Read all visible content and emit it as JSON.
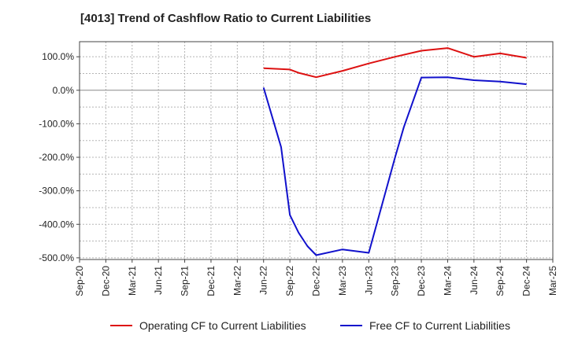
{
  "chart_data": {
    "type": "line",
    "title": "[4013]  Trend of Cashflow Ratio to Current Liabilities",
    "xlabel": "",
    "ylabel": "",
    "x_ticks": [
      "Sep-20",
      "Dec-20",
      "Mar-21",
      "Jun-21",
      "Sep-21",
      "Dec-21",
      "Mar-22",
      "Jun-22",
      "Sep-22",
      "Dec-22",
      "Mar-23",
      "Jun-23",
      "Sep-23",
      "Dec-23",
      "Mar-24",
      "Jun-24",
      "Sep-24",
      "Dec-24",
      "Mar-25"
    ],
    "y_ticks": [
      "100.0%",
      "0.0%",
      "-100.0%",
      "-200.0%",
      "-300.0%",
      "-400.0%",
      "-500.0%"
    ],
    "ylim": [
      -505,
      145
    ],
    "grid": true,
    "legend_position": "bottom",
    "series": [
      {
        "name": "Operating CF to Current Liabilities",
        "color": "#dd1111",
        "x": [
          "Jun-22",
          "Sep-22",
          "Oct-22",
          "Dec-22",
          "Mar-23",
          "Jun-23",
          "Sep-23",
          "Dec-23",
          "Mar-24",
          "Jun-24",
          "Sep-24",
          "Dec-24"
        ],
        "values": [
          66,
          62,
          52,
          39,
          58,
          80,
          100,
          118,
          126,
          100,
          110,
          97
        ]
      },
      {
        "name": "Free CF to Current Liabilities",
        "color": "#1111cc",
        "x": [
          "Jun-22",
          "Aug-22",
          "Sep-22",
          "Oct-22",
          "Nov-22",
          "Dec-22",
          "Mar-23",
          "Jun-23",
          "Sep-23",
          "Oct-23",
          "Dec-23",
          "Mar-24",
          "Jun-24",
          "Sep-24",
          "Dec-24"
        ],
        "values": [
          8,
          -170,
          -372,
          -425,
          -465,
          -492,
          -475,
          -485,
          -200,
          -110,
          38,
          39,
          30,
          26,
          18
        ]
      }
    ]
  }
}
